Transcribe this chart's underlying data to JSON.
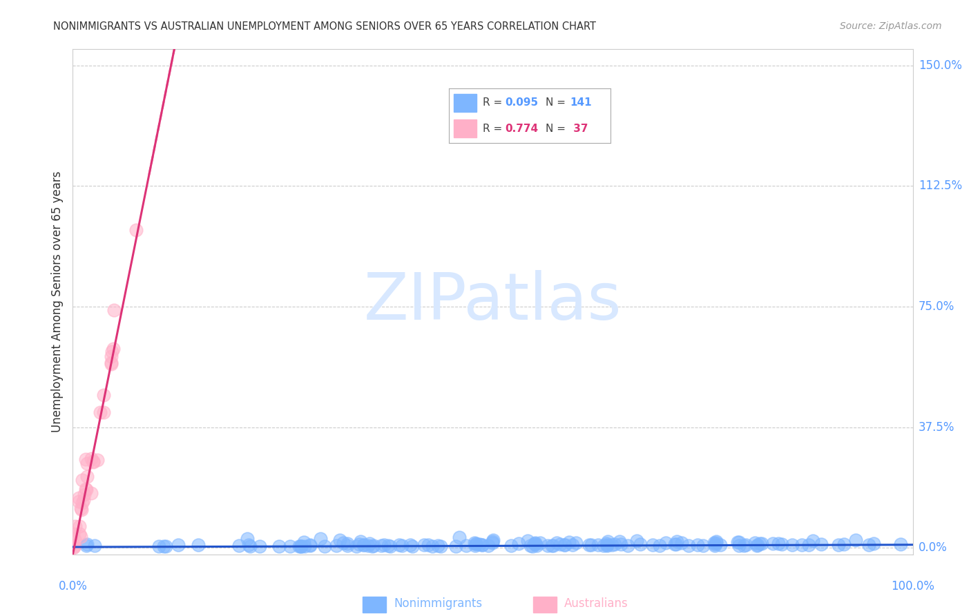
{
  "title": "NONIMMIGRANTS VS AUSTRALIAN UNEMPLOYMENT AMONG SENIORS OVER 65 YEARS CORRELATION CHART",
  "source": "Source: ZipAtlas.com",
  "ylabel": "Unemployment Among Seniors over 65 years",
  "xlim": [
    0.0,
    1.0
  ],
  "ylim": [
    -0.02,
    1.55
  ],
  "xtick_labels": [
    "0.0%",
    "100.0%"
  ],
  "xtick_positions": [
    0.0,
    1.0
  ],
  "ytick_labels": [
    "0.0%",
    "37.5%",
    "75.0%",
    "112.5%",
    "150.0%"
  ],
  "ytick_values": [
    0.0,
    0.375,
    0.75,
    1.125,
    1.5
  ],
  "nonimmigrants_color": "#7EB6FF",
  "nonimmigrants_edge_color": "#7EB6FF",
  "nonimmigrants_line_color": "#2255CC",
  "australians_color": "#FFB0C8",
  "australians_edge_color": "#FFB0C8",
  "australians_line_color": "#DD3377",
  "background_color": "#FFFFFF",
  "grid_color": "#CCCCCC",
  "title_color": "#333333",
  "source_color": "#999999",
  "axis_label_color": "#333333",
  "tick_label_color": "#5599FF",
  "watermark_color": "#D8E8FF",
  "nonimmigrants_R": 0.095,
  "nonimmigrants_N": 141,
  "australians_R": 0.774,
  "australians_N": 37,
  "seed": 42
}
